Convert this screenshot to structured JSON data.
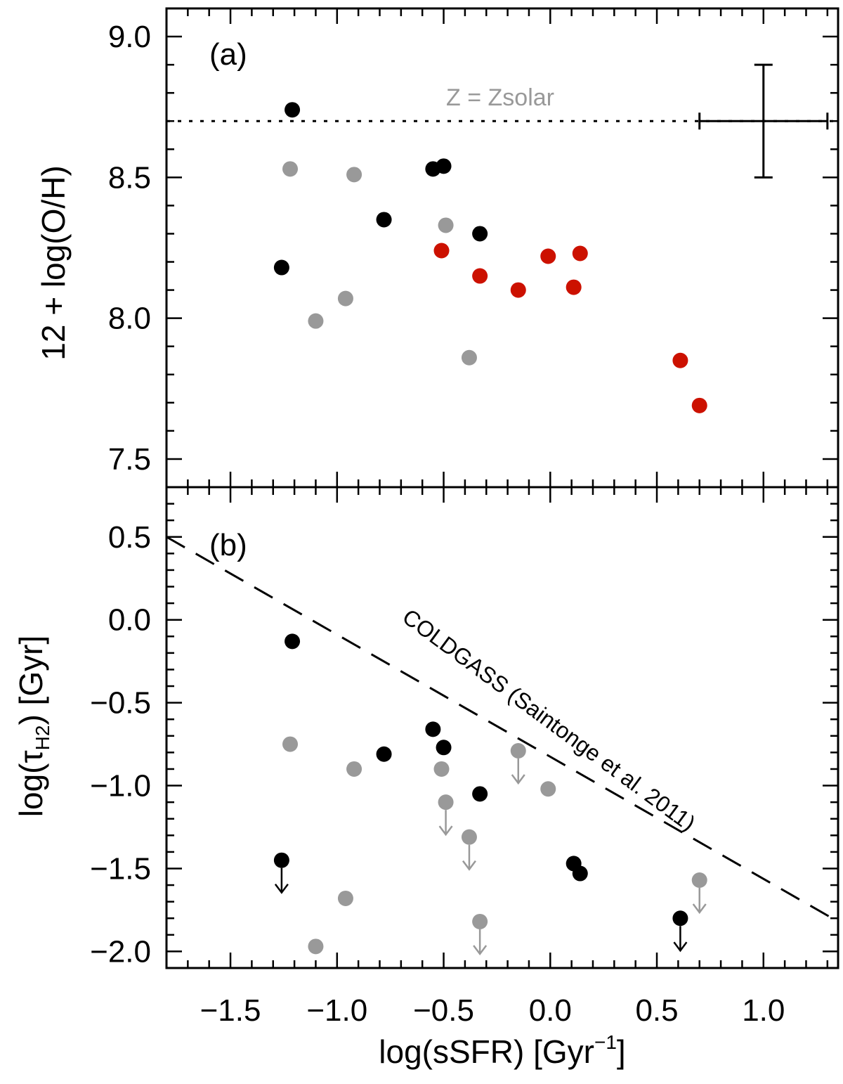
{
  "colors": {
    "black": "#000000",
    "gray": "#999999",
    "red": "#cc1100",
    "ref_text": "#999999"
  },
  "shared_x": {
    "label_main": "log(sSFR) [Gyr",
    "label_sup": "−1",
    "label_close": "]",
    "xlim": [
      -1.8,
      1.35
    ],
    "ticks": [
      {
        "v": -1.5,
        "label": "−1.5"
      },
      {
        "v": -1.0,
        "label": "−1.0"
      },
      {
        "v": -0.5,
        "label": "−0.5"
      },
      {
        "v": 0.0,
        "label": "0.0"
      },
      {
        "v": 0.5,
        "label": "0.5"
      },
      {
        "v": 1.0,
        "label": "1.0"
      }
    ]
  },
  "chart_data": [
    {
      "type": "scatter",
      "panel": "(a)",
      "ylabel": "12 + log(O/H)",
      "ylim": [
        7.4,
        9.1
      ],
      "yticks": [
        {
          "v": 7.5,
          "label": "7.5"
        },
        {
          "v": 8.0,
          "label": "8.0"
        },
        {
          "v": 8.5,
          "label": "8.5"
        },
        {
          "v": 9.0,
          "label": "9.0"
        }
      ],
      "reference_line": {
        "y": 8.7,
        "label": "Z = Zsolar",
        "style": "dotted"
      },
      "typical_error_bar": {
        "x": 1.0,
        "y": 8.7,
        "xerr": 0.3,
        "yerr": 0.2
      },
      "series": [
        {
          "name": "black",
          "color": "black",
          "points": [
            [
              -1.21,
              8.74
            ],
            [
              -1.26,
              8.18
            ],
            [
              -0.55,
              8.53
            ],
            [
              -0.5,
              8.54
            ],
            [
              -0.78,
              8.35
            ],
            [
              -0.33,
              8.3
            ]
          ]
        },
        {
          "name": "gray",
          "color": "gray",
          "points": [
            [
              -1.22,
              8.53
            ],
            [
              -0.92,
              8.51
            ],
            [
              -1.1,
              7.99
            ],
            [
              -0.96,
              8.07
            ],
            [
              -0.49,
              8.33
            ],
            [
              -0.38,
              7.86
            ]
          ]
        },
        {
          "name": "red",
          "color": "red",
          "points": [
            [
              -0.51,
              8.24
            ],
            [
              -0.33,
              8.15
            ],
            [
              -0.15,
              8.1
            ],
            [
              -0.01,
              8.22
            ],
            [
              0.11,
              8.11
            ],
            [
              0.14,
              8.23
            ],
            [
              0.61,
              7.85
            ],
            [
              0.7,
              7.69
            ]
          ]
        }
      ]
    },
    {
      "type": "scatter",
      "panel": "(b)",
      "ylabel_main": "log(τ",
      "ylabel_sub": "H2",
      "ylabel_close": ") [Gyr]",
      "ylim": [
        -2.1,
        0.8
      ],
      "yticks": [
        {
          "v": -2.0,
          "label": "−2.0"
        },
        {
          "v": -1.5,
          "label": "−1.5"
        },
        {
          "v": -1.0,
          "label": "−1.0"
        },
        {
          "v": -0.5,
          "label": "−0.5"
        },
        {
          "v": 0.0,
          "label": "0.0"
        },
        {
          "v": 0.5,
          "label": "0.5"
        }
      ],
      "reference_line": {
        "label": "COLDGASS (Saintonge et al. 2011)",
        "style": "dashed",
        "x0": -1.8,
        "y0": 0.5,
        "x1": 1.35,
        "y1": -1.82
      },
      "series": [
        {
          "name": "black",
          "color": "black",
          "points": [
            [
              -1.21,
              -0.13,
              false
            ],
            [
              -0.55,
              -0.66,
              false
            ],
            [
              -0.5,
              -0.77,
              false
            ],
            [
              -0.78,
              -0.81,
              false
            ],
            [
              -0.33,
              -1.05,
              false
            ],
            [
              -1.26,
              -1.45,
              true
            ],
            [
              0.11,
              -1.47,
              false
            ],
            [
              0.14,
              -1.53,
              false
            ],
            [
              0.61,
              -1.8,
              true
            ]
          ]
        },
        {
          "name": "gray",
          "color": "gray",
          "points": [
            [
              -1.22,
              -0.75,
              false
            ],
            [
              -0.92,
              -0.9,
              false
            ],
            [
              -0.51,
              -0.9,
              false
            ],
            [
              -0.15,
              -0.79,
              true
            ],
            [
              -0.01,
              -1.02,
              false
            ],
            [
              -0.49,
              -1.1,
              true
            ],
            [
              -0.38,
              -1.31,
              true
            ],
            [
              -0.96,
              -1.68,
              false
            ],
            [
              -1.1,
              -1.97,
              false
            ],
            [
              -0.33,
              -1.82,
              true
            ],
            [
              0.7,
              -1.57,
              true
            ]
          ]
        }
      ]
    }
  ]
}
